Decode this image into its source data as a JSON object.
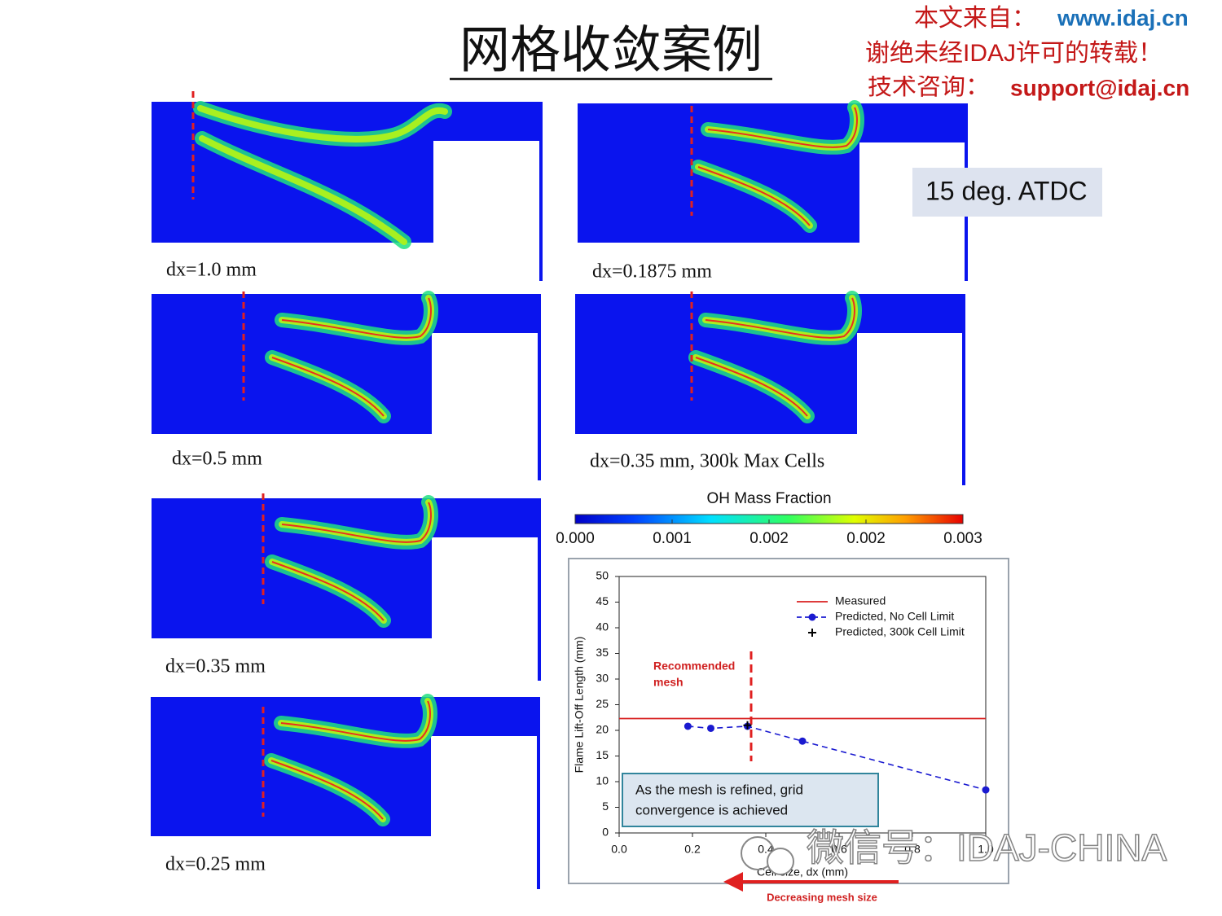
{
  "header": {
    "title": "网格收敛案例"
  },
  "watermark": {
    "source_label": "本文来自：",
    "source_url": "www.idaj.cn",
    "notice": "谢绝未经IDAJ许可的转载！",
    "support_label": "技术咨询：",
    "support_email": "support@idaj.cn",
    "wechat": "微信号：IDAJ-CHINA"
  },
  "time_label": "15 deg. ATDC",
  "panel_labels": [
    "dx=1.0 mm",
    "dx=0.1875 mm",
    "dx=0.5 mm",
    "dx=0.35 mm, 300k Max Cells",
    "dx=0.35 mm",
    "dx=0.25 mm"
  ],
  "colorbar": {
    "title": "OH Mass Fraction",
    "lim": [
      0,
      0.003
    ],
    "ticks": [
      {
        "value": 0,
        "label": "0.000"
      },
      {
        "value": 0.00075,
        "label": "0.001"
      },
      {
        "value": 0.0015,
        "label": "0.002"
      },
      {
        "value": 0.00225,
        "label": "0.002"
      },
      {
        "value": 0.003,
        "label": "0.003"
      }
    ]
  },
  "chart_data": {
    "type": "line",
    "x_label": "Cell size, dx (mm)",
    "y_label": "Flame Lift-Off Length (mm)",
    "xlim": [
      0,
      1
    ],
    "xticks": [
      {
        "value": 0,
        "label": "0.0"
      },
      0.2,
      0.4,
      0.6,
      0.8,
      {
        "value": 1,
        "label": "1.0"
      }
    ],
    "ylim": [
      0,
      50
    ],
    "yticks": [
      0,
      5,
      10,
      15,
      20,
      25,
      30,
      35,
      40,
      45,
      50
    ],
    "series": [
      {
        "name": "Measured",
        "color": "#d92020",
        "line_style": "solid",
        "marker": "none",
        "x": [
          0,
          1
        ],
        "values": [
          22.3,
          22.3
        ]
      },
      {
        "name": "Predicted, No Cell Limit",
        "color": "#1a1ad0",
        "line_style": "dashed",
        "marker": "circle",
        "x": [
          0.1875,
          0.25,
          0.35,
          0.5,
          1
        ],
        "values": [
          20.8,
          20.4,
          20.8,
          17.9,
          8.4
        ]
      },
      {
        "name": "Predicted, 300k Cell Limit",
        "color": "#000000",
        "line_style": "none",
        "marker": "plus",
        "x": [
          0.35
        ],
        "values": [
          21.0
        ]
      }
    ],
    "annotation": {
      "lines": [
        "Recommended",
        "mesh"
      ],
      "x": 0.36
    },
    "callout": {
      "lines": [
        "As the mesh is refined, grid",
        "convergence is achieved"
      ]
    },
    "arrow_label": "Decreasing mesh size"
  }
}
